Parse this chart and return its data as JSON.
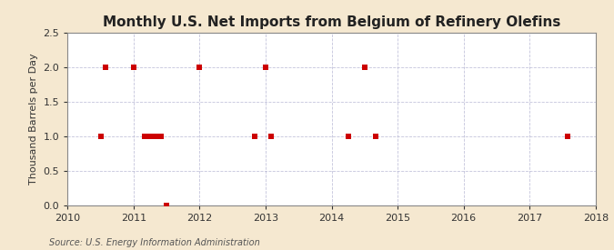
{
  "title": "Monthly U.S. Net Imports from Belgium of Refinery Olefins",
  "ylabel": "Thousand Barrels per Day",
  "source": "Source: U.S. Energy Information Administration",
  "background_color": "#f5e8d0",
  "plot_bg_color": "#ffffff",
  "marker_color": "#cc0000",
  "marker": "s",
  "marker_size": 4,
  "xlim": [
    2010,
    2018
  ],
  "ylim": [
    0.0,
    2.5
  ],
  "xticks": [
    2010,
    2011,
    2012,
    2013,
    2014,
    2015,
    2016,
    2017,
    2018
  ],
  "yticks": [
    0.0,
    0.5,
    1.0,
    1.5,
    2.0,
    2.5
  ],
  "x": [
    2010.5,
    2010.58,
    2011.0,
    2011.17,
    2011.25,
    2011.33,
    2011.42,
    2011.5,
    2012.0,
    2012.83,
    2013.0,
    2013.08,
    2014.25,
    2014.5,
    2014.67,
    2017.58
  ],
  "y": [
    1.0,
    2.0,
    2.0,
    1.0,
    1.0,
    1.0,
    1.0,
    0.0,
    2.0,
    1.0,
    2.0,
    1.0,
    1.0,
    2.0,
    1.0,
    1.0
  ],
  "grid_color": "#aaaacc",
  "grid_alpha": 0.7,
  "spine_color": "#888888",
  "title_fontsize": 11,
  "ylabel_fontsize": 8,
  "tick_fontsize": 8,
  "source_fontsize": 7
}
